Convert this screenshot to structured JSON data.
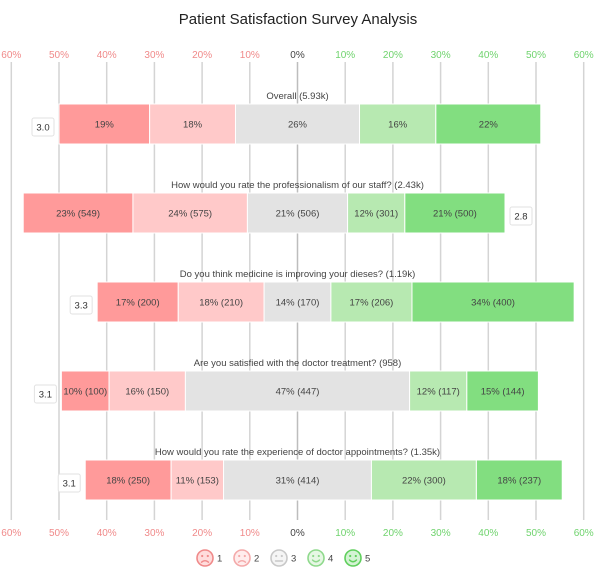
{
  "chart_data": {
    "type": "bar",
    "subtype": "diverging-stacked-horizontal",
    "title": "Patient Satisfaction Survey Analysis",
    "xlim": [
      -60,
      60
    ],
    "ticks": [
      {
        "value": -60,
        "label": "60%"
      },
      {
        "value": -50,
        "label": "50%"
      },
      {
        "value": -40,
        "label": "40%"
      },
      {
        "value": -30,
        "label": "30%"
      },
      {
        "value": -20,
        "label": "20%"
      },
      {
        "value": -10,
        "label": "10%"
      },
      {
        "value": 0,
        "label": "0%"
      },
      {
        "value": 10,
        "label": "10%"
      },
      {
        "value": 20,
        "label": "20%"
      },
      {
        "value": 30,
        "label": "30%"
      },
      {
        "value": 40,
        "label": "40%"
      },
      {
        "value": 50,
        "label": "50%"
      },
      {
        "value": 60,
        "label": "60%"
      }
    ],
    "grid": true,
    "legend": {
      "position": "bottom",
      "items": [
        {
          "label": "1",
          "color": "#ff9a9a"
        },
        {
          "label": "2",
          "color": "#ffc9c9"
        },
        {
          "label": "3",
          "color": "#e3e3e3"
        },
        {
          "label": "4",
          "color": "#b7e9b1"
        },
        {
          "label": "5",
          "color": "#82de80"
        }
      ]
    },
    "categories": [
      "Overall (5.93k)",
      "How would you rate the professionalism of our staff? (2.43k)",
      "Do you think medicine is improving your dieses? (1.19k)",
      "Are you satisfied with the doctor treatment? (958)",
      "How would you rate the experience of doctor appointments? (1.35k)"
    ],
    "series": [
      {
        "name": "1",
        "values": [
          19,
          23,
          17,
          10,
          18
        ],
        "labels": [
          "19%",
          "23% (549)",
          "17% (200)",
          "10% (100)",
          "18% (250)"
        ]
      },
      {
        "name": "2",
        "values": [
          18,
          24,
          18,
          16,
          11
        ],
        "labels": [
          "18%",
          "24% (575)",
          "18% (210)",
          "16% (150)",
          "11% (153)"
        ]
      },
      {
        "name": "3",
        "values": [
          26,
          21,
          14,
          47,
          31
        ],
        "labels": [
          "26%",
          "21% (506)",
          "14% (170)",
          "47% (447)",
          "31% (414)"
        ]
      },
      {
        "name": "4",
        "values": [
          16,
          12,
          17,
          12,
          22
        ],
        "labels": [
          "16%",
          "12% (301)",
          "17% (206)",
          "12% (117)",
          "22% (300)"
        ]
      },
      {
        "name": "5",
        "values": [
          22,
          21,
          34,
          15,
          18
        ],
        "labels": [
          "22%",
          "21% (500)",
          "34% (400)",
          "15% (144)",
          "18% (237)"
        ]
      }
    ],
    "scores": [
      {
        "label": "3.0",
        "side": "left"
      },
      {
        "label": "2.8",
        "side": "right"
      },
      {
        "label": "3.3",
        "side": "left"
      },
      {
        "label": "3.1",
        "side": "left"
      },
      {
        "label": "3.1",
        "side": "left"
      }
    ]
  }
}
